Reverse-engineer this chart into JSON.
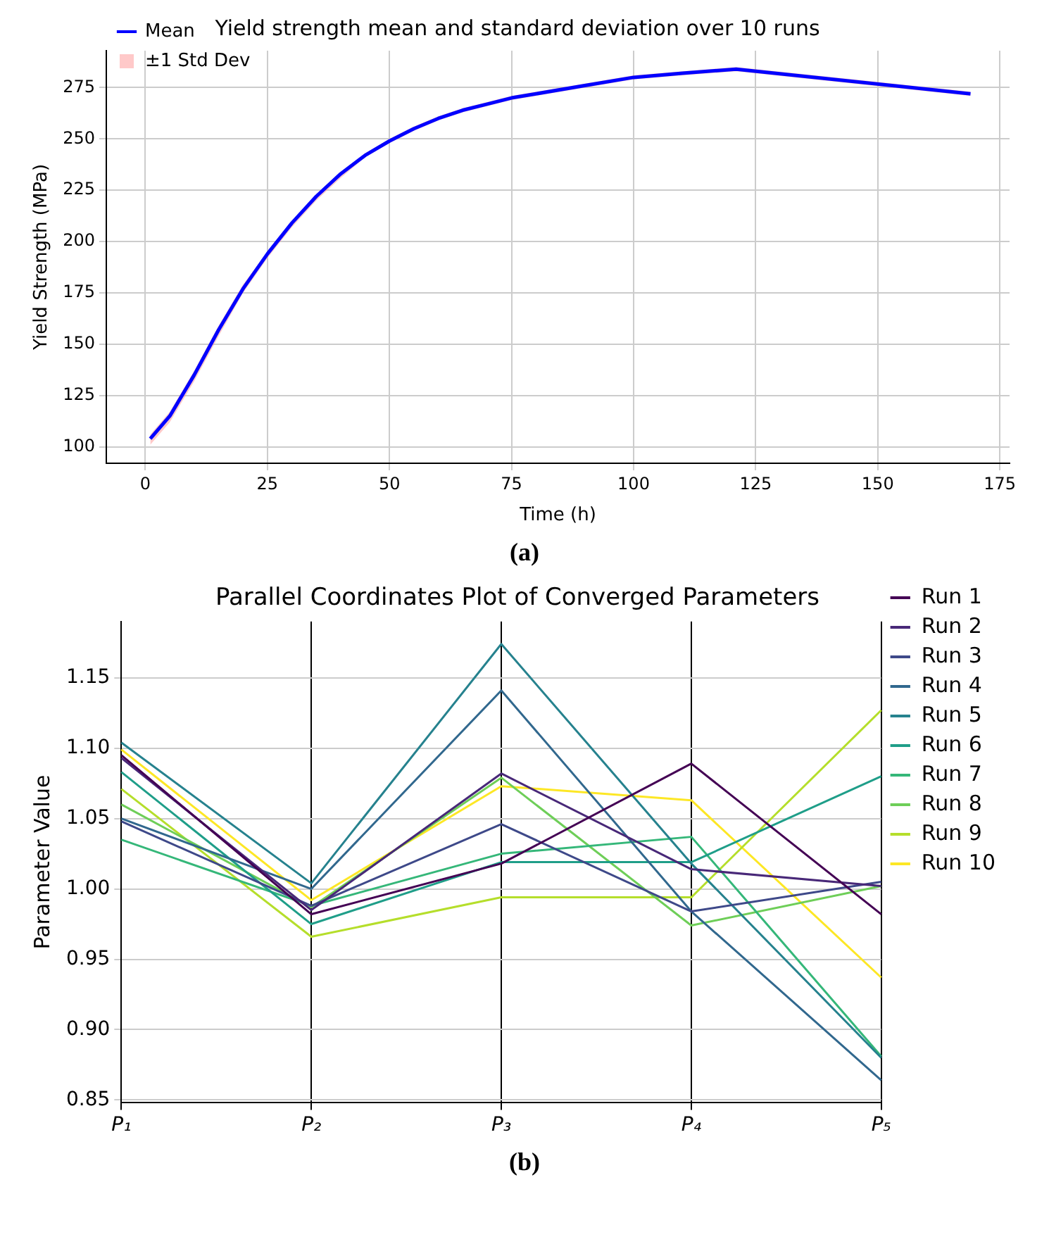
{
  "chart_data": [
    {
      "type": "line",
      "title": "Yield strength mean and standard deviation over 10 runs",
      "xlabel": "Time (h)",
      "ylabel": "Yield Strength (MPa)",
      "x": [
        1,
        5,
        10,
        15,
        20,
        25,
        30,
        35,
        40,
        45,
        50,
        55,
        60,
        65,
        70,
        75,
        80,
        90,
        100,
        110,
        121,
        169
      ],
      "series": [
        {
          "name": "Mean",
          "color": "#0000ff",
          "values": [
            104,
            115,
            135,
            157,
            177,
            194,
            209,
            222,
            233,
            242,
            249,
            255,
            260,
            264,
            267,
            270,
            272,
            276,
            280,
            282,
            284,
            272
          ]
        },
        {
          "name": "±1 Std Dev",
          "color": "#ff9999",
          "values": [
            null,
            null,
            null,
            null,
            null,
            null,
            null,
            null,
            null,
            null,
            null,
            null,
            null,
            null,
            null,
            null,
            null,
            null,
            null,
            null,
            null,
            null
          ],
          "lower": [
            101,
            112,
            132,
            154,
            175,
            192,
            207,
            220,
            231,
            241,
            248,
            254,
            259,
            263,
            266,
            269,
            271,
            275,
            279,
            281,
            283,
            271
          ],
          "upper": [
            106,
            117,
            137,
            159,
            179,
            195,
            210,
            223,
            234,
            243,
            250,
            256,
            261,
            265,
            268,
            271,
            273,
            277,
            281,
            283,
            285,
            273
          ]
        }
      ],
      "xlim": [
        -8,
        177
      ],
      "xticks": [
        0,
        25,
        50,
        75,
        100,
        125,
        150,
        175
      ],
      "ylim": [
        92,
        293
      ],
      "yticks": [
        100,
        125,
        150,
        175,
        200,
        225,
        250,
        275
      ],
      "grid": true,
      "legend": "top left",
      "annotations": [
        "(a)"
      ]
    },
    {
      "type": "line",
      "title": "Parallel Coordinates Plot of Converged Parameters",
      "ylabel": "Parameter Value",
      "categories": [
        "P₁",
        "P₂",
        "P₃",
        "P₄",
        "P₅"
      ],
      "series": [
        {
          "name": "Run 1",
          "color": "#440154",
          "values": [
            1.095,
            0.982,
            1.018,
            1.089,
            0.982
          ]
        },
        {
          "name": "Run 2",
          "color": "#482878",
          "values": [
            1.093,
            0.985,
            1.082,
            1.014,
            1.002
          ]
        },
        {
          "name": "Run 3",
          "color": "#3e4989",
          "values": [
            1.048,
            0.988,
            1.046,
            0.984,
            1.005
          ]
        },
        {
          "name": "Run 4",
          "color": "#31688e",
          "values": [
            1.05,
            1.0,
            1.141,
            0.984,
            0.864
          ]
        },
        {
          "name": "Run 5",
          "color": "#26828e",
          "values": [
            1.104,
            1.004,
            1.174,
            1.018,
            0.88
          ]
        },
        {
          "name": "Run 6",
          "color": "#1f9e89",
          "values": [
            1.083,
            0.975,
            1.019,
            1.019,
            1.08
          ]
        },
        {
          "name": "Run 7",
          "color": "#35b779",
          "values": [
            1.035,
            0.988,
            1.025,
            1.037,
            0.881
          ]
        },
        {
          "name": "Run 8",
          "color": "#6ece58",
          "values": [
            1.06,
            0.987,
            1.079,
            0.974,
            1.002
          ]
        },
        {
          "name": "Run 9",
          "color": "#b5de2b",
          "values": [
            1.071,
            0.966,
            0.994,
            0.994,
            1.127
          ]
        },
        {
          "name": "Run 10",
          "color": "#fde725",
          "values": [
            1.099,
            0.992,
            1.073,
            1.063,
            0.937
          ]
        }
      ],
      "ylim": [
        0.848,
        1.19
      ],
      "yticks": [
        0.85,
        {
          "value": 0.9,
          "label": "0.90"
        },
        0.95,
        {
          "value": 1.0,
          "label": "1.00"
        },
        1.05,
        {
          "value": 1.1,
          "label": "1.10"
        },
        1.15
      ],
      "grid": true,
      "legend": "right",
      "annotations": [
        "(b)"
      ]
    }
  ]
}
